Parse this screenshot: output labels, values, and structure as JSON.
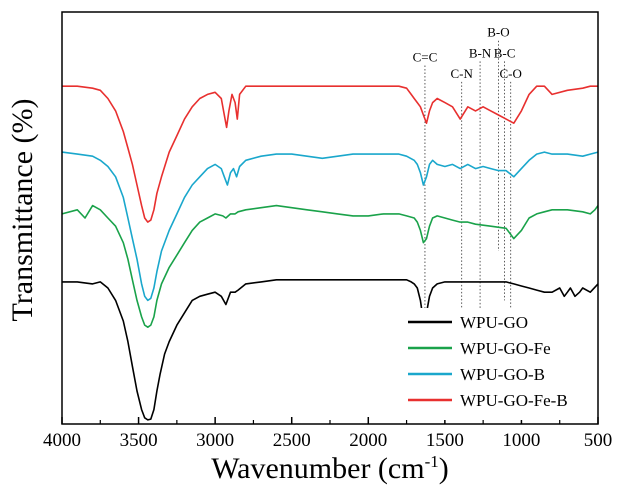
{
  "chart_data": {
    "type": "line",
    "xlabel": "Wavenumber (cm",
    "xlabel_sup": "-1",
    "xlabel_close": ")",
    "ylabel": "Transmittance (%)",
    "xlim": [
      4000,
      500
    ],
    "x_reversed": true,
    "ylim": [
      0,
      1
    ],
    "y_ticks_shown": false,
    "grid": false,
    "x_ticks": [
      4000,
      3500,
      3000,
      2500,
      2000,
      1500,
      1000,
      500
    ],
    "x_tick_labels": [
      "4000",
      "3500",
      "3000",
      "2500",
      "2000",
      "1500",
      "1000",
      "500"
    ],
    "legend": {
      "placement": "bottom-right",
      "entries": [
        "WPU-GO",
        "WPU-GO-Fe",
        "WPU-GO-B",
        "WPU-GO-Fe-B"
      ]
    },
    "annotations": [
      {
        "text": "C=C",
        "x": 1630,
        "label_y": 0.88,
        "line_to_y": 0.22
      },
      {
        "text": "C-N",
        "x": 1390,
        "label_y": 0.84,
        "line_to_y": 0.27
      },
      {
        "text": "B-N",
        "x": 1270,
        "label_y": 0.89,
        "line_to_y": 0.25
      },
      {
        "text": "B-O",
        "x": 1150,
        "label_y": 0.94,
        "line_to_y": 0.42
      },
      {
        "text": "B-C",
        "x": 1110,
        "label_y": 0.89,
        "line_to_y": 0.3
      },
      {
        "text": "C-O",
        "x": 1070,
        "label_y": 0.84,
        "line_to_y": 0.24
      }
    ],
    "series": [
      {
        "name": "WPU-GO",
        "color": "#000000",
        "x": [
          4000,
          3900,
          3800,
          3750,
          3700,
          3650,
          3600,
          3570,
          3540,
          3510,
          3480,
          3460,
          3440,
          3420,
          3400,
          3380,
          3360,
          3330,
          3300,
          3250,
          3200,
          3150,
          3100,
          3050,
          3000,
          2960,
          2930,
          2900,
          2870,
          2850,
          2800,
          2700,
          2600,
          2500,
          2400,
          2300,
          2200,
          2100,
          2000,
          1900,
          1800,
          1750,
          1720,
          1700,
          1680,
          1660,
          1640,
          1620,
          1600,
          1580,
          1550,
          1500,
          1450,
          1400,
          1350,
          1300,
          1250,
          1200,
          1150,
          1100,
          1050,
          1000,
          950,
          900,
          850,
          800,
          750,
          720,
          700,
          680,
          650,
          620,
          600,
          550,
          500
        ],
        "y": [
          0.345,
          0.345,
          0.34,
          0.345,
          0.33,
          0.3,
          0.25,
          0.2,
          0.14,
          0.08,
          0.035,
          0.015,
          0.01,
          0.012,
          0.035,
          0.08,
          0.12,
          0.17,
          0.2,
          0.24,
          0.27,
          0.3,
          0.31,
          0.315,
          0.32,
          0.31,
          0.29,
          0.32,
          0.32,
          0.325,
          0.34,
          0.345,
          0.35,
          0.35,
          0.35,
          0.35,
          0.35,
          0.35,
          0.35,
          0.35,
          0.35,
          0.35,
          0.345,
          0.34,
          0.33,
          0.3,
          0.25,
          0.27,
          0.31,
          0.33,
          0.34,
          0.345,
          0.345,
          0.345,
          0.345,
          0.345,
          0.345,
          0.345,
          0.345,
          0.345,
          0.34,
          0.335,
          0.33,
          0.325,
          0.32,
          0.32,
          0.33,
          0.31,
          0.32,
          0.33,
          0.31,
          0.32,
          0.33,
          0.32,
          0.34
        ]
      },
      {
        "name": "WPU-GO-Fe",
        "color": "#1aa24a",
        "x": [
          4000,
          3900,
          3850,
          3800,
          3750,
          3700,
          3650,
          3600,
          3570,
          3540,
          3510,
          3480,
          3460,
          3440,
          3420,
          3400,
          3380,
          3350,
          3300,
          3250,
          3200,
          3150,
          3100,
          3050,
          3000,
          2950,
          2930,
          2900,
          2870,
          2850,
          2800,
          2700,
          2600,
          2500,
          2400,
          2300,
          2200,
          2100,
          2000,
          1900,
          1800,
          1750,
          1700,
          1680,
          1660,
          1640,
          1620,
          1600,
          1580,
          1550,
          1500,
          1450,
          1400,
          1350,
          1300,
          1200,
          1100,
          1050,
          1000,
          950,
          900,
          850,
          800,
          700,
          600,
          550,
          520,
          500
        ],
        "y": [
          0.51,
          0.52,
          0.5,
          0.53,
          0.52,
          0.5,
          0.48,
          0.44,
          0.4,
          0.35,
          0.3,
          0.26,
          0.24,
          0.235,
          0.24,
          0.26,
          0.3,
          0.34,
          0.38,
          0.41,
          0.44,
          0.47,
          0.49,
          0.5,
          0.51,
          0.505,
          0.5,
          0.51,
          0.51,
          0.515,
          0.52,
          0.525,
          0.53,
          0.525,
          0.52,
          0.515,
          0.51,
          0.505,
          0.505,
          0.51,
          0.51,
          0.505,
          0.5,
          0.49,
          0.47,
          0.44,
          0.45,
          0.48,
          0.5,
          0.505,
          0.5,
          0.495,
          0.49,
          0.49,
          0.485,
          0.48,
          0.475,
          0.45,
          0.47,
          0.5,
          0.51,
          0.515,
          0.52,
          0.52,
          0.515,
          0.51,
          0.52,
          0.53
        ]
      },
      {
        "name": "WPU-GO-B",
        "color": "#1aa7cc",
        "x": [
          4000,
          3900,
          3800,
          3750,
          3700,
          3650,
          3600,
          3570,
          3540,
          3510,
          3480,
          3460,
          3440,
          3420,
          3400,
          3380,
          3350,
          3300,
          3250,
          3200,
          3150,
          3100,
          3050,
          3000,
          2960,
          2940,
          2920,
          2900,
          2880,
          2860,
          2840,
          2800,
          2700,
          2600,
          2500,
          2400,
          2300,
          2200,
          2100,
          2000,
          1900,
          1800,
          1750,
          1700,
          1680,
          1660,
          1640,
          1620,
          1600,
          1580,
          1550,
          1500,
          1450,
          1400,
          1350,
          1300,
          1250,
          1200,
          1150,
          1100,
          1050,
          1000,
          950,
          900,
          850,
          800,
          700,
          600,
          550,
          500
        ],
        "y": [
          0.66,
          0.655,
          0.65,
          0.64,
          0.625,
          0.6,
          0.55,
          0.5,
          0.45,
          0.4,
          0.34,
          0.31,
          0.3,
          0.305,
          0.33,
          0.37,
          0.42,
          0.47,
          0.51,
          0.55,
          0.58,
          0.6,
          0.62,
          0.63,
          0.62,
          0.6,
          0.58,
          0.61,
          0.62,
          0.6,
          0.625,
          0.64,
          0.65,
          0.655,
          0.655,
          0.65,
          0.645,
          0.65,
          0.655,
          0.655,
          0.655,
          0.655,
          0.65,
          0.64,
          0.63,
          0.61,
          0.58,
          0.6,
          0.63,
          0.64,
          0.63,
          0.625,
          0.63,
          0.62,
          0.63,
          0.62,
          0.625,
          0.62,
          0.615,
          0.615,
          0.6,
          0.62,
          0.64,
          0.655,
          0.66,
          0.655,
          0.655,
          0.65,
          0.655,
          0.66
        ]
      },
      {
        "name": "WPU-GO-Fe-B",
        "color": "#e8302f",
        "x": [
          4000,
          3900,
          3800,
          3750,
          3700,
          3650,
          3600,
          3570,
          3540,
          3510,
          3480,
          3460,
          3440,
          3420,
          3400,
          3380,
          3350,
          3300,
          3250,
          3200,
          3150,
          3100,
          3050,
          3000,
          2960,
          2940,
          2925,
          2910,
          2890,
          2870,
          2855,
          2840,
          2800,
          2700,
          2600,
          2500,
          2400,
          2300,
          2200,
          2100,
          2000,
          1900,
          1800,
          1750,
          1720,
          1700,
          1680,
          1660,
          1640,
          1620,
          1600,
          1580,
          1550,
          1500,
          1450,
          1400,
          1350,
          1300,
          1250,
          1200,
          1150,
          1100,
          1050,
          1000,
          950,
          900,
          850,
          800,
          700,
          600,
          550,
          500
        ],
        "y": [
          0.82,
          0.82,
          0.815,
          0.81,
          0.79,
          0.76,
          0.71,
          0.67,
          0.63,
          0.58,
          0.53,
          0.5,
          0.49,
          0.495,
          0.52,
          0.56,
          0.6,
          0.66,
          0.7,
          0.74,
          0.77,
          0.79,
          0.8,
          0.805,
          0.79,
          0.75,
          0.72,
          0.76,
          0.8,
          0.78,
          0.74,
          0.8,
          0.82,
          0.82,
          0.82,
          0.82,
          0.82,
          0.82,
          0.82,
          0.82,
          0.82,
          0.82,
          0.82,
          0.815,
          0.8,
          0.79,
          0.78,
          0.77,
          0.75,
          0.73,
          0.76,
          0.78,
          0.79,
          0.78,
          0.77,
          0.74,
          0.77,
          0.76,
          0.77,
          0.76,
          0.75,
          0.74,
          0.73,
          0.76,
          0.8,
          0.82,
          0.82,
          0.8,
          0.81,
          0.815,
          0.82,
          0.82
        ]
      }
    ]
  }
}
